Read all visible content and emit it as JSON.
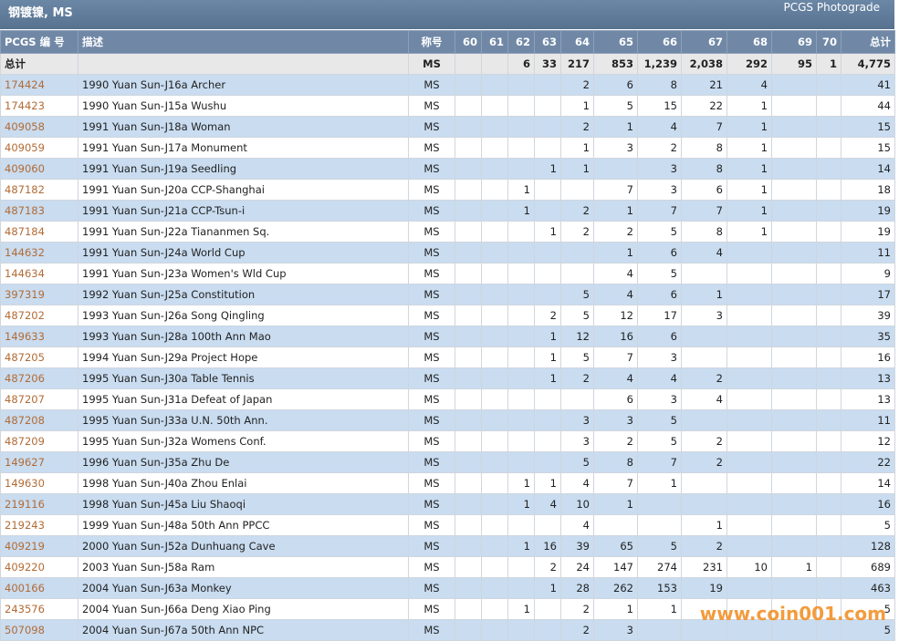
{
  "header": {
    "title": "钢镀镍, MS",
    "link": "PCGS Photograde"
  },
  "table": {
    "columns": [
      "PCGS 编 号",
      "描述",
      "称号",
      "60",
      "61",
      "62",
      "63",
      "64",
      "65",
      "66",
      "67",
      "68",
      "69",
      "70",
      "总计"
    ],
    "total_row": [
      "总计",
      null,
      "MS",
      null,
      null,
      6,
      33,
      217,
      853,
      "1,239",
      "2,038",
      292,
      95,
      1,
      "4,775"
    ],
    "rows": [
      [
        "174424",
        "1990 Yuan Sun-J16a Archer",
        "MS",
        null,
        null,
        null,
        null,
        2,
        6,
        8,
        21,
        4,
        null,
        null,
        41
      ],
      [
        "174423",
        "1990 Yuan Sun-J15a Wushu",
        "MS",
        null,
        null,
        null,
        null,
        1,
        5,
        15,
        22,
        1,
        null,
        null,
        44
      ],
      [
        "409058",
        "1991 Yuan Sun-J18a Woman",
        "MS",
        null,
        null,
        null,
        null,
        2,
        1,
        4,
        7,
        1,
        null,
        null,
        15
      ],
      [
        "409059",
        "1991 Yuan Sun-J17a Monument",
        "MS",
        null,
        null,
        null,
        null,
        1,
        3,
        2,
        8,
        1,
        null,
        null,
        15
      ],
      [
        "409060",
        "1991 Yuan Sun-J19a Seedling",
        "MS",
        null,
        null,
        null,
        1,
        1,
        null,
        3,
        8,
        1,
        null,
        null,
        14
      ],
      [
        "487182",
        "1991 Yuan Sun-J20a CCP-Shanghai",
        "MS",
        null,
        null,
        1,
        null,
        null,
        7,
        3,
        6,
        1,
        null,
        null,
        18
      ],
      [
        "487183",
        "1991 Yuan Sun-J21a CCP-Tsun-i",
        "MS",
        null,
        null,
        1,
        null,
        2,
        1,
        7,
        7,
        1,
        null,
        null,
        19
      ],
      [
        "487184",
        "1991 Yuan Sun-J22a Tiananmen Sq.",
        "MS",
        null,
        null,
        null,
        1,
        2,
        2,
        5,
        8,
        1,
        null,
        null,
        19
      ],
      [
        "144632",
        "1991 Yuan Sun-J24a World Cup",
        "MS",
        null,
        null,
        null,
        null,
        null,
        1,
        6,
        4,
        null,
        null,
        null,
        11
      ],
      [
        "144634",
        "1991 Yuan Sun-J23a Women's Wld Cup",
        "MS",
        null,
        null,
        null,
        null,
        null,
        4,
        5,
        null,
        null,
        null,
        null,
        9
      ],
      [
        "397319",
        "1992 Yuan Sun-J25a Constitution",
        "MS",
        null,
        null,
        null,
        null,
        5,
        4,
        6,
        1,
        null,
        null,
        null,
        17
      ],
      [
        "487202",
        "1993 Yuan Sun-J26a Song Qingling",
        "MS",
        null,
        null,
        null,
        2,
        5,
        12,
        17,
        3,
        null,
        null,
        null,
        39
      ],
      [
        "149633",
        "1993 Yuan Sun-J28a 100th Ann Mao",
        "MS",
        null,
        null,
        null,
        1,
        12,
        16,
        6,
        null,
        null,
        null,
        null,
        35
      ],
      [
        "487205",
        "1994 Yuan Sun-J29a Project Hope",
        "MS",
        null,
        null,
        null,
        1,
        5,
        7,
        3,
        null,
        null,
        null,
        null,
        16
      ],
      [
        "487206",
        "1995 Yuan Sun-J30a Table Tennis",
        "MS",
        null,
        null,
        null,
        1,
        2,
        4,
        4,
        2,
        null,
        null,
        null,
        13
      ],
      [
        "487207",
        "1995 Yuan Sun-J31a Defeat of Japan",
        "MS",
        null,
        null,
        null,
        null,
        null,
        6,
        3,
        4,
        null,
        null,
        null,
        13
      ],
      [
        "487208",
        "1995 Yuan Sun-J33a U.N. 50th Ann.",
        "MS",
        null,
        null,
        null,
        null,
        3,
        3,
        5,
        null,
        null,
        null,
        null,
        11
      ],
      [
        "487209",
        "1995 Yuan Sun-J32a Womens Conf.",
        "MS",
        null,
        null,
        null,
        null,
        3,
        2,
        5,
        2,
        null,
        null,
        null,
        12
      ],
      [
        "149627",
        "1996 Yuan Sun-J35a Zhu De",
        "MS",
        null,
        null,
        null,
        null,
        5,
        8,
        7,
        2,
        null,
        null,
        null,
        22
      ],
      [
        "149630",
        "1998 Yuan Sun-J40a Zhou Enlai",
        "MS",
        null,
        null,
        1,
        1,
        4,
        7,
        1,
        null,
        null,
        null,
        null,
        14
      ],
      [
        "219116",
        "1998 Yuan Sun-J45a Liu Shaoqi",
        "MS",
        null,
        null,
        1,
        4,
        10,
        1,
        null,
        null,
        null,
        null,
        null,
        16
      ],
      [
        "219243",
        "1999 Yuan Sun-J48a 50th Ann PPCC",
        "MS",
        null,
        null,
        null,
        null,
        4,
        null,
        null,
        1,
        null,
        null,
        null,
        5
      ],
      [
        "409219",
        "2000 Yuan Sun-J52a Dunhuang Cave",
        "MS",
        null,
        null,
        1,
        16,
        39,
        65,
        5,
        2,
        null,
        null,
        null,
        128
      ],
      [
        "409220",
        "2003 Yuan Sun-J58a Ram",
        "MS",
        null,
        null,
        null,
        2,
        24,
        147,
        274,
        231,
        10,
        1,
        null,
        689
      ],
      [
        "400166",
        "2004 Yuan Sun-J63a Monkey",
        "MS",
        null,
        null,
        null,
        1,
        28,
        262,
        153,
        19,
        null,
        null,
        null,
        463
      ],
      [
        "243576",
        "2004 Yuan Sun-J66a Deng Xiao Ping",
        "MS",
        null,
        null,
        1,
        null,
        2,
        1,
        1,
        null,
        null,
        null,
        null,
        5
      ],
      [
        "507098",
        "2004 Yuan Sun-J67a 50th Ann NPC",
        "MS",
        null,
        null,
        null,
        null,
        2,
        3,
        null,
        null,
        null,
        null,
        null,
        5
      ]
    ]
  },
  "watermark": "www.coin001.com"
}
